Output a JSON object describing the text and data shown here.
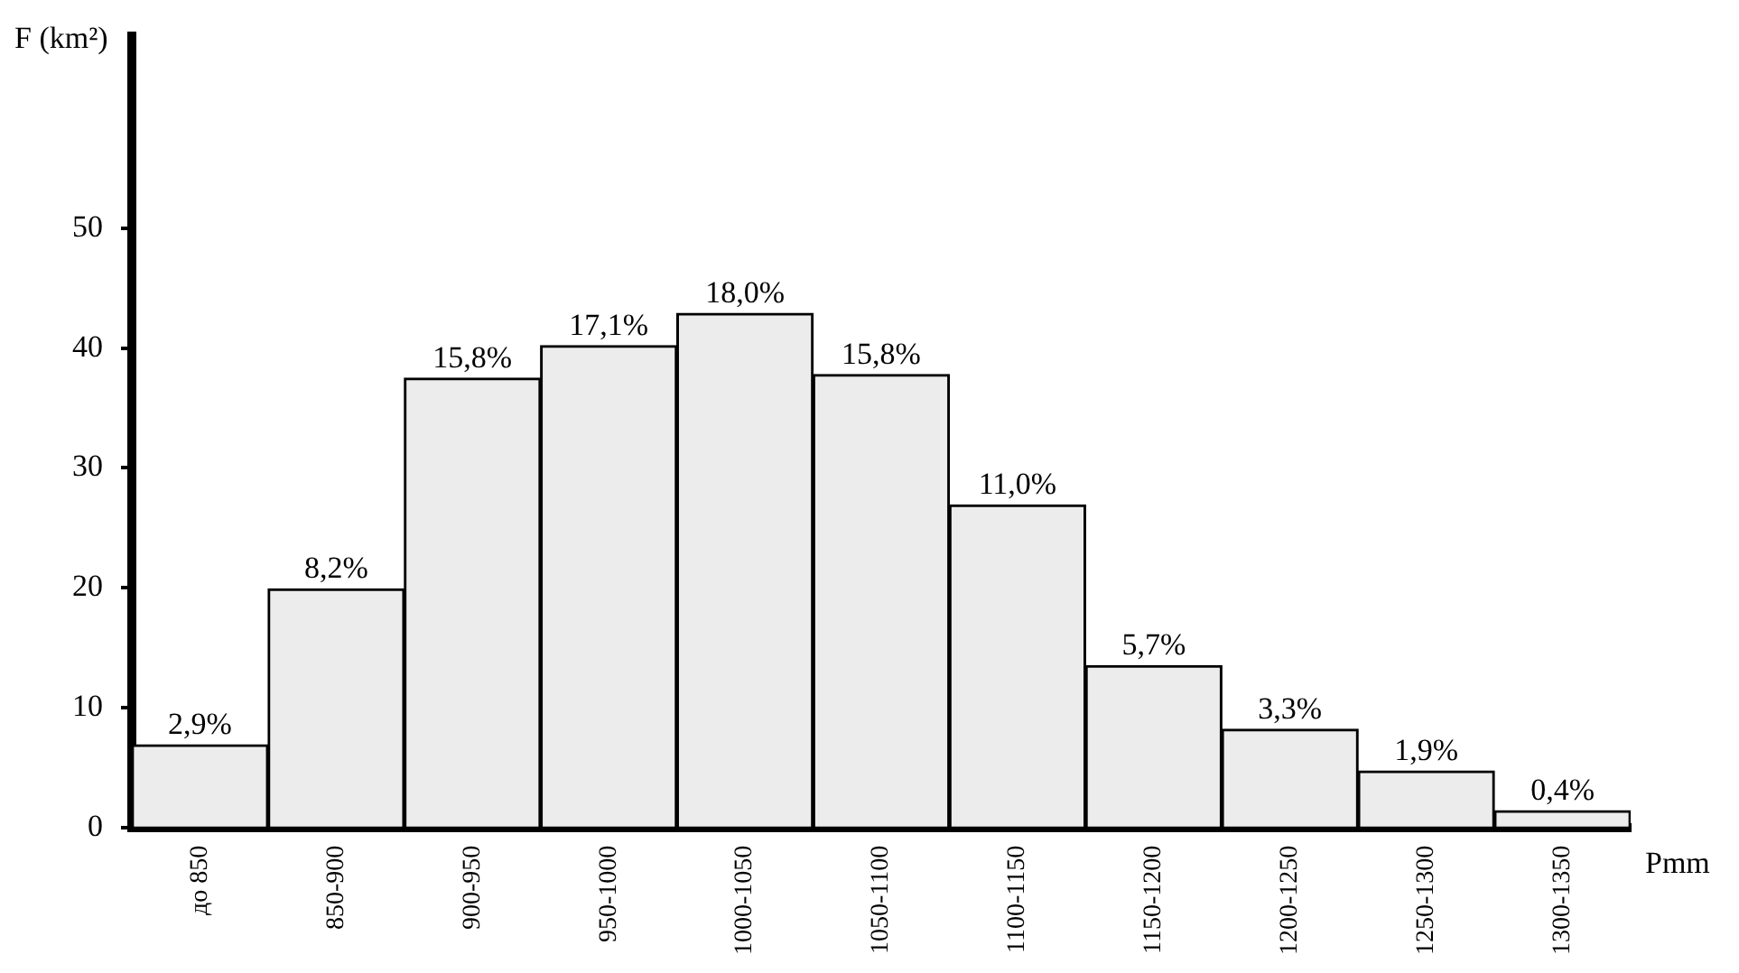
{
  "chart_data": {
    "type": "bar",
    "ylabel": "F (km²)",
    "xlabel": "Pmm",
    "categories": [
      "до 850",
      "850-900",
      "900-950",
      "950-1000",
      "1000-1050",
      "1050-1100",
      "1100-1150",
      "1150-1200",
      "1200-1250",
      "1250-1300",
      "1300-1350"
    ],
    "values": [
      6.9,
      19.9,
      37.5,
      40.2,
      42.9,
      37.8,
      26.9,
      13.5,
      8.2,
      4.7,
      1.4
    ],
    "annotations": [
      {
        "text": "2,9%",
        "x": "до 850",
        "y": 6.9
      },
      {
        "text": "8,2%",
        "x": "850-900",
        "y": 19.9
      },
      {
        "text": "15,8%",
        "x": "900-950",
        "y": 37.5
      },
      {
        "text": "17,1%",
        "x": "950-1000",
        "y": 40.2
      },
      {
        "text": "18,0%",
        "x": "1000-1050",
        "y": 42.9
      },
      {
        "text": "15,8%",
        "x": "1050-1100",
        "y": 37.8
      },
      {
        "text": "11,0%",
        "x": "1100-1150",
        "y": 26.9
      },
      {
        "text": "5,7%",
        "x": "1150-1200",
        "y": 13.5
      },
      {
        "text": "3,3%",
        "x": "1200-1250",
        "y": 8.2
      },
      {
        "text": "1,9%",
        "x": "1250-1300",
        "y": 4.7
      },
      {
        "text": "0,4%",
        "x": "1300-1350",
        "y": 1.4
      }
    ],
    "color": "#ececec",
    "ylim": [
      0,
      66
    ],
    "yticks": [
      0,
      10,
      20,
      30,
      40,
      50
    ],
    "grid": false,
    "legend": false
  }
}
